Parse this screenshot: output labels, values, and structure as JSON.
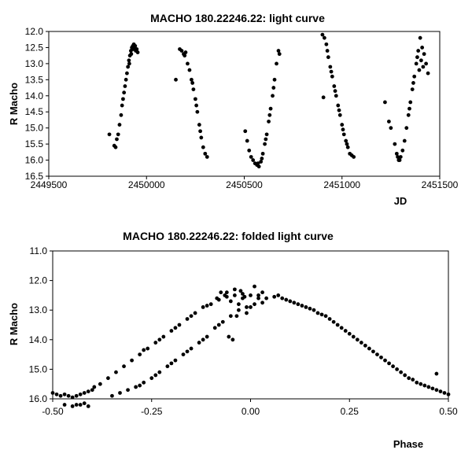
{
  "chart_data": [
    {
      "type": "scatter",
      "title": "MACHO 180.22246.22: light curve",
      "xlabel": "JD",
      "ylabel": "R Macho",
      "xlim": [
        2449500,
        2451500
      ],
      "ylim": [
        12.0,
        16.5
      ],
      "y_inverted": true,
      "grid": false,
      "x_ticks": [
        "2449500",
        "2450000",
        "2450500",
        "2451000",
        "2451500"
      ],
      "y_ticks": [
        "12.0",
        "12.5",
        "13.0",
        "13.5",
        "14.0",
        "14.5",
        "15.0",
        "15.5",
        "16.0",
        "16.5"
      ],
      "series": [
        {
          "points": [
            [
              2449810,
              15.2
            ],
            [
              2449835,
              15.55
            ],
            [
              2449842,
              15.6
            ],
            [
              2449848,
              15.35
            ],
            [
              2449855,
              15.2
            ],
            [
              2449862,
              14.9
            ],
            [
              2449870,
              14.6
            ],
            [
              2449875,
              14.3
            ],
            [
              2449880,
              14.1
            ],
            [
              2449885,
              13.9
            ],
            [
              2449890,
              13.7
            ],
            [
              2449895,
              13.5
            ],
            [
              2449900,
              13.3
            ],
            [
              2449905,
              13.1
            ],
            [
              2449910,
              12.9
            ],
            [
              2449915,
              12.75
            ],
            [
              2449920,
              12.6
            ],
            [
              2449925,
              12.5
            ],
            [
              2449930,
              12.45
            ],
            [
              2449935,
              12.4
            ],
            [
              2449940,
              12.5
            ],
            [
              2449945,
              12.6
            ],
            [
              2449950,
              12.55
            ],
            [
              2449955,
              12.65
            ],
            [
              2449912,
              13.0
            ],
            [
              2449922,
              12.7
            ],
            [
              2449932,
              12.55
            ],
            [
              2449942,
              12.45
            ],
            [
              2450150,
              13.5
            ],
            [
              2450170,
              12.55
            ],
            [
              2450180,
              12.6
            ],
            [
              2450190,
              12.7
            ],
            [
              2450200,
              12.65
            ],
            [
              2450210,
              13.0
            ],
            [
              2450220,
              13.2
            ],
            [
              2450230,
              13.5
            ],
            [
              2450240,
              13.8
            ],
            [
              2450250,
              14.1
            ],
            [
              2450260,
              14.5
            ],
            [
              2450270,
              14.9
            ],
            [
              2450280,
              15.3
            ],
            [
              2450290,
              15.6
            ],
            [
              2450300,
              15.8
            ],
            [
              2450310,
              15.9
            ],
            [
              2450195,
              12.75
            ],
            [
              2450235,
              13.6
            ],
            [
              2450255,
              14.3
            ],
            [
              2450275,
              15.1
            ],
            [
              2450505,
              15.1
            ],
            [
              2450515,
              15.4
            ],
            [
              2450525,
              15.7
            ],
            [
              2450535,
              15.9
            ],
            [
              2450545,
              16.0
            ],
            [
              2450555,
              16.1
            ],
            [
              2450565,
              16.15
            ],
            [
              2450575,
              16.2
            ],
            [
              2450585,
              16.05
            ],
            [
              2450595,
              15.8
            ],
            [
              2450605,
              15.5
            ],
            [
              2450615,
              15.2
            ],
            [
              2450625,
              14.8
            ],
            [
              2450635,
              14.4
            ],
            [
              2450645,
              14.0
            ],
            [
              2450655,
              13.5
            ],
            [
              2450665,
              13.0
            ],
            [
              2450675,
              12.6
            ],
            [
              2450680,
              12.7
            ],
            [
              2450570,
              16.1
            ],
            [
              2450590,
              15.95
            ],
            [
              2450610,
              15.35
            ],
            [
              2450630,
              14.6
            ],
            [
              2450650,
              13.75
            ],
            [
              2450900,
              12.1
            ],
            [
              2450905,
              14.05
            ],
            [
              2450910,
              12.2
            ],
            [
              2450920,
              12.4
            ],
            [
              2450930,
              12.8
            ],
            [
              2450940,
              13.1
            ],
            [
              2450950,
              13.4
            ],
            [
              2450960,
              13.7
            ],
            [
              2450970,
              14.0
            ],
            [
              2450980,
              14.3
            ],
            [
              2450990,
              14.6
            ],
            [
              2451000,
              14.9
            ],
            [
              2451010,
              15.2
            ],
            [
              2451020,
              15.4
            ],
            [
              2451030,
              15.6
            ],
            [
              2451040,
              15.8
            ],
            [
              2451050,
              15.85
            ],
            [
              2451060,
              15.9
            ],
            [
              2450925,
              12.6
            ],
            [
              2450945,
              13.25
            ],
            [
              2450965,
              13.85
            ],
            [
              2450985,
              14.45
            ],
            [
              2451005,
              15.05
            ],
            [
              2451025,
              15.5
            ],
            [
              2451220,
              14.2
            ],
            [
              2451240,
              14.8
            ],
            [
              2451250,
              15.0
            ],
            [
              2451270,
              15.5
            ],
            [
              2451280,
              15.8
            ],
            [
              2451290,
              16.0
            ],
            [
              2451300,
              15.9
            ],
            [
              2451310,
              15.7
            ],
            [
              2451320,
              15.4
            ],
            [
              2451330,
              15.0
            ],
            [
              2451340,
              14.6
            ],
            [
              2451350,
              14.2
            ],
            [
              2451360,
              13.8
            ],
            [
              2451370,
              13.4
            ],
            [
              2451380,
              13.0
            ],
            [
              2451390,
              12.6
            ],
            [
              2451400,
              12.2
            ],
            [
              2451410,
              12.5
            ],
            [
              2451420,
              12.7
            ],
            [
              2451430,
              13.0
            ],
            [
              2451440,
              13.3
            ],
            [
              2451385,
              12.8
            ],
            [
              2451395,
              13.2
            ],
            [
              2451405,
              12.9
            ],
            [
              2451415,
              13.1
            ],
            [
              2451285,
              15.9
            ],
            [
              2451295,
              16.0
            ],
            [
              2451345,
              14.4
            ],
            [
              2451365,
              13.6
            ]
          ]
        }
      ]
    },
    {
      "type": "scatter",
      "title": "MACHO 180.22246.22: folded light curve",
      "xlabel": "Phase",
      "ylabel": "R Macho",
      "xlim": [
        -0.5,
        0.5
      ],
      "ylim": [
        11.0,
        16.0
      ],
      "y_inverted": true,
      "grid": false,
      "x_ticks": [
        "-0.50",
        "-0.25",
        "0.00",
        "0.25",
        "0.50"
      ],
      "y_ticks": [
        "11.0",
        "12.0",
        "13.0",
        "14.0",
        "15.0",
        "16.0"
      ],
      "series": [
        {
          "points": [
            [
              -0.5,
              15.8
            ],
            [
              -0.49,
              15.85
            ],
            [
              -0.48,
              15.9
            ],
            [
              -0.47,
              15.85
            ],
            [
              -0.46,
              15.9
            ],
            [
              -0.45,
              15.95
            ],
            [
              -0.44,
              15.9
            ],
            [
              -0.43,
              15.85
            ],
            [
              -0.42,
              15.8
            ],
            [
              -0.41,
              15.75
            ],
            [
              -0.4,
              15.7
            ],
            [
              -0.395,
              15.6
            ],
            [
              -0.47,
              16.2
            ],
            [
              -0.45,
              16.25
            ],
            [
              -0.43,
              16.2
            ],
            [
              -0.41,
              16.25
            ],
            [
              -0.44,
              16.2
            ],
            [
              -0.42,
              16.15
            ],
            [
              -0.38,
              15.5
            ],
            [
              -0.36,
              15.3
            ],
            [
              -0.34,
              15.1
            ],
            [
              -0.32,
              14.9
            ],
            [
              -0.3,
              14.7
            ],
            [
              -0.28,
              14.5
            ],
            [
              -0.26,
              14.3
            ],
            [
              -0.24,
              14.1
            ],
            [
              -0.22,
              13.9
            ],
            [
              -0.2,
              13.7
            ],
            [
              -0.18,
              13.5
            ],
            [
              -0.16,
              13.3
            ],
            [
              -0.14,
              13.1
            ],
            [
              -0.12,
              12.9
            ],
            [
              -0.1,
              12.8
            ],
            [
              -0.08,
              12.65
            ],
            [
              -0.06,
              12.55
            ],
            [
              -0.04,
              12.5
            ],
            [
              -0.02,
              12.45
            ],
            [
              0.0,
              12.5
            ],
            [
              0.02,
              12.6
            ],
            [
              -0.27,
              14.35
            ],
            [
              -0.23,
              14.0
            ],
            [
              -0.19,
              13.6
            ],
            [
              -0.15,
              13.2
            ],
            [
              -0.11,
              12.85
            ],
            [
              -0.35,
              15.9
            ],
            [
              -0.33,
              15.8
            ],
            [
              -0.31,
              15.7
            ],
            [
              -0.29,
              15.6
            ],
            [
              -0.27,
              15.45
            ],
            [
              -0.25,
              15.3
            ],
            [
              -0.23,
              15.1
            ],
            [
              -0.21,
              14.9
            ],
            [
              -0.19,
              14.7
            ],
            [
              -0.17,
              14.5
            ],
            [
              -0.15,
              14.3
            ],
            [
              -0.13,
              14.1
            ],
            [
              -0.11,
              13.9
            ],
            [
              -0.09,
              13.6
            ],
            [
              -0.07,
              13.4
            ],
            [
              -0.05,
              13.2
            ],
            [
              -0.03,
              13.0
            ],
            [
              -0.01,
              12.9
            ],
            [
              0.01,
              12.8
            ],
            [
              0.03,
              12.75
            ],
            [
              -0.28,
              15.55
            ],
            [
              -0.24,
              15.2
            ],
            [
              -0.2,
              14.8
            ],
            [
              -0.16,
              14.4
            ],
            [
              -0.12,
              14.0
            ],
            [
              -0.08,
              13.5
            ],
            [
              -0.06,
              12.4
            ],
            [
              -0.04,
              12.3
            ],
            [
              -0.02,
              12.6
            ],
            [
              0.0,
              12.9
            ],
            [
              0.01,
              12.2
            ],
            [
              0.03,
              12.4
            ],
            [
              -0.05,
              12.7
            ],
            [
              -0.03,
              12.8
            ],
            [
              -0.01,
              13.1
            ],
            [
              0.02,
              12.5
            ],
            [
              -0.045,
              14.0
            ],
            [
              -0.055,
              13.9
            ],
            [
              -0.035,
              13.2
            ],
            [
              -0.025,
              12.35
            ],
            [
              -0.015,
              12.55
            ],
            [
              -0.065,
              12.5
            ],
            [
              -0.075,
              12.4
            ],
            [
              -0.085,
              12.6
            ],
            [
              0.04,
              12.6
            ],
            [
              0.06,
              12.55
            ],
            [
              0.08,
              12.6
            ],
            [
              0.1,
              12.7
            ],
            [
              0.12,
              12.8
            ],
            [
              0.14,
              12.9
            ],
            [
              0.16,
              13.0
            ],
            [
              0.18,
              13.15
            ],
            [
              0.2,
              13.3
            ],
            [
              0.22,
              13.5
            ],
            [
              0.24,
              13.7
            ],
            [
              0.26,
              13.9
            ],
            [
              0.28,
              14.1
            ],
            [
              0.3,
              14.3
            ],
            [
              0.32,
              14.5
            ],
            [
              0.34,
              14.7
            ],
            [
              0.36,
              14.9
            ],
            [
              0.38,
              15.1
            ],
            [
              0.4,
              15.3
            ],
            [
              0.42,
              15.45
            ],
            [
              0.44,
              15.55
            ],
            [
              0.46,
              15.65
            ],
            [
              0.48,
              15.75
            ],
            [
              0.5,
              15.85
            ],
            [
              0.07,
              12.5
            ],
            [
              0.09,
              12.65
            ],
            [
              0.11,
              12.75
            ],
            [
              0.13,
              12.85
            ],
            [
              0.15,
              12.95
            ],
            [
              0.17,
              13.1
            ],
            [
              0.19,
              13.2
            ],
            [
              0.21,
              13.4
            ],
            [
              0.23,
              13.6
            ],
            [
              0.25,
              13.8
            ],
            [
              0.27,
              14.0
            ],
            [
              0.29,
              14.2
            ],
            [
              0.31,
              14.4
            ],
            [
              0.33,
              14.6
            ],
            [
              0.35,
              14.8
            ],
            [
              0.37,
              15.0
            ],
            [
              0.39,
              15.2
            ],
            [
              0.41,
              15.35
            ],
            [
              0.43,
              15.5
            ],
            [
              0.45,
              15.6
            ],
            [
              0.47,
              15.7
            ],
            [
              0.49,
              15.8
            ],
            [
              0.47,
              15.15
            ]
          ]
        }
      ]
    }
  ]
}
